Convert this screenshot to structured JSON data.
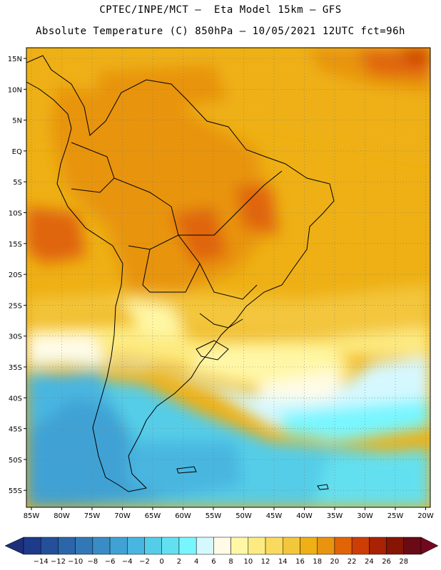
{
  "header": {
    "line1": "CPTEC/INPE/MCT –  Eta Model 15km – GFS",
    "line2": "Absolute Temperature (C) 850hPa – 10/05/2021 12UTC fct=96h"
  },
  "map": {
    "lat_ticks": [
      "15N",
      "10N",
      "5N",
      "EQ",
      "5S",
      "10S",
      "15S",
      "20S",
      "25S",
      "30S",
      "35S",
      "40S",
      "45S",
      "50S",
      "55S"
    ],
    "lon_ticks": [
      "85W",
      "80W",
      "75W",
      "70W",
      "65W",
      "60W",
      "55W",
      "50W",
      "45W",
      "40W",
      "35W",
      "30W",
      "25W",
      "20W"
    ],
    "grid": true
  },
  "colorbar": {
    "labels": [
      "-14",
      "-12",
      "-10",
      "-8",
      "-6",
      "-4",
      "-2",
      "0",
      "2",
      "4",
      "6",
      "8",
      "10",
      "12",
      "14",
      "16",
      "18",
      "20",
      "22",
      "24",
      "26",
      "28"
    ],
    "colors": [
      "#1e3a8a",
      "#24509a",
      "#2c66aa",
      "#3378b6",
      "#3a8cc4",
      "#40a2d4",
      "#48b6e0",
      "#55cde8",
      "#63e0f0",
      "#78f6ff",
      "#d5f8ff",
      "#fffbe6",
      "#fff7a6",
      "#fdeb82",
      "#f9da5e",
      "#f3c63c",
      "#eeb014",
      "#e89410",
      "#e06508",
      "#cc3e06",
      "#a82204",
      "#861504",
      "#6a0a14"
    ],
    "underflow_color": "#1e2f7a",
    "overflow_color": "#72091f"
  }
}
